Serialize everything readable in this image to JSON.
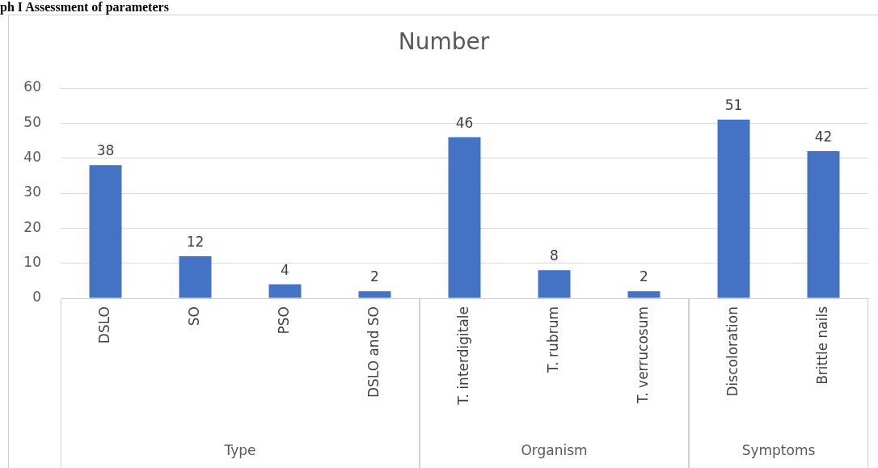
{
  "chart_data": [
    {
      "type": "bar",
      "title": "Number",
      "xlabel": "Type",
      "categories": [
        "DSLO",
        "SO",
        "PSO",
        "DSLO and SO"
      ],
      "values": [
        38,
        12,
        4,
        2
      ],
      "color": "#4472c4",
      "ylim": [
        0,
        60
      ],
      "yticks": [
        0,
        10,
        20,
        30,
        40,
        50,
        60
      ],
      "grid": "y",
      "data_labels": true,
      "annotations": [
        "ph I Assessment of parameters"
      ]
    },
    {
      "type": "bar",
      "xlabel": "Organism",
      "categories": [
        "T. interdigitale",
        "T. rubrum",
        "T. verrucosum"
      ],
      "values": [
        46,
        8,
        2
      ],
      "color": "#4472c4",
      "ylim": [
        0,
        60
      ],
      "yticks": [
        0,
        10,
        20,
        30,
        40,
        50,
        60
      ],
      "grid": "y",
      "data_labels": true,
      "tick_labels": "x"
    },
    {
      "type": "bar",
      "xlabel": "Symptoms",
      "categories": [
        "Discoloration",
        "Brittle nails"
      ],
      "values": [
        51,
        42
      ],
      "color": "#4472c4",
      "ylim": [
        0,
        60
      ],
      "yticks": [
        0,
        10,
        20,
        30,
        40,
        50,
        60
      ],
      "grid": "y",
      "data_labels": true,
      "tick_labels": "x"
    }
  ]
}
